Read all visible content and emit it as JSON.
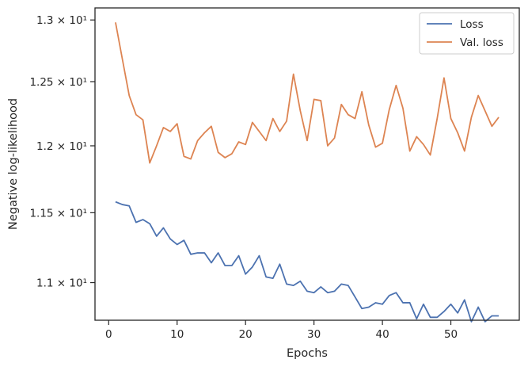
{
  "chart_data": {
    "type": "line",
    "xlabel": "Epochs",
    "ylabel": "Negative log-likelihood",
    "xlim": [
      -2,
      60
    ],
    "ylim": [
      10.74,
      13.1
    ],
    "yscale": "log",
    "x_ticks": [
      0,
      10,
      20,
      30,
      40,
      50
    ],
    "y_ticks": [
      {
        "value": 11.0,
        "label": "1.1 × 10¹"
      },
      {
        "value": 11.5,
        "label": "1.15 × 10¹"
      },
      {
        "value": 12.0,
        "label": "1.2 × 10¹"
      },
      {
        "value": 12.5,
        "label": "1.25 × 10¹"
      },
      {
        "value": 13.0,
        "label": "1.3 × 10¹"
      }
    ],
    "grid": false,
    "legend_position": "top-right",
    "x": [
      1,
      2,
      3,
      4,
      5,
      6,
      7,
      8,
      9,
      10,
      11,
      12,
      13,
      14,
      15,
      16,
      17,
      18,
      19,
      20,
      21,
      22,
      23,
      24,
      25,
      26,
      27,
      28,
      29,
      30,
      31,
      32,
      33,
      34,
      35,
      36,
      37,
      38,
      39,
      40,
      41,
      42,
      43,
      44,
      45,
      46,
      47,
      48,
      49,
      50,
      51,
      52,
      53,
      54,
      55,
      56,
      57
    ],
    "series": [
      {
        "name": "Loss",
        "color": "#4c72b0",
        "values": [
          11.58,
          11.56,
          11.55,
          11.43,
          11.45,
          11.42,
          11.33,
          11.39,
          11.31,
          11.27,
          11.3,
          11.2,
          11.21,
          11.21,
          11.14,
          11.21,
          11.12,
          11.12,
          11.19,
          11.06,
          11.11,
          11.19,
          11.04,
          11.03,
          11.13,
          10.99,
          10.98,
          11.01,
          10.94,
          10.93,
          10.97,
          10.93,
          10.94,
          10.99,
          10.98,
          10.9,
          10.82,
          10.83,
          10.86,
          10.85,
          10.91,
          10.93,
          10.86,
          10.86,
          10.75,
          10.85,
          10.76,
          10.76,
          10.8,
          10.85,
          10.79,
          10.88,
          10.73,
          10.83,
          10.73,
          10.77,
          10.77
        ]
      },
      {
        "name": "Val. loss",
        "color": "#dd8452",
        "values": [
          12.98,
          12.68,
          12.39,
          12.24,
          12.2,
          11.87,
          12.0,
          12.14,
          12.11,
          12.17,
          11.92,
          11.9,
          12.04,
          12.1,
          12.15,
          11.95,
          11.91,
          11.94,
          12.03,
          12.01,
          12.18,
          12.11,
          12.04,
          12.21,
          12.11,
          12.19,
          12.56,
          12.27,
          12.04,
          12.36,
          12.35,
          12.0,
          12.06,
          12.32,
          12.24,
          12.21,
          12.42,
          12.16,
          11.99,
          12.02,
          12.28,
          12.47,
          12.29,
          11.96,
          12.07,
          12.01,
          11.93,
          12.21,
          12.53,
          12.21,
          12.1,
          11.96,
          12.22,
          12.39,
          12.27,
          12.15,
          12.22
        ]
      }
    ]
  }
}
